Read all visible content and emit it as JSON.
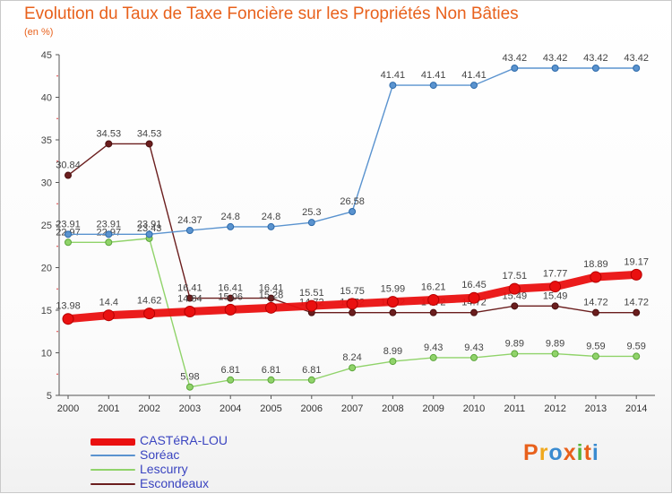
{
  "chart_data": {
    "type": "line",
    "title": "Evolution du Taux de Taxe Foncière sur les Propriétés Non Bâties",
    "subtitle": "(en %)",
    "x": [
      "2000",
      "2001",
      "2002",
      "2003",
      "2004",
      "2005",
      "2006",
      "2007",
      "2008",
      "2009",
      "2010",
      "2011",
      "2012",
      "2013",
      "2014"
    ],
    "ylim": [
      5,
      45
    ],
    "yticks": [
      5,
      10,
      15,
      20,
      25,
      30,
      35,
      40,
      45
    ],
    "grid": false,
    "legend_position": "bottom-left",
    "series": [
      {
        "name": "Escondeaux",
        "color": "#6b1e1e",
        "values": [
          30.84,
          34.53,
          34.53,
          16.41,
          16.41,
          16.41,
          14.72,
          14.72,
          14.72,
          14.72,
          14.72,
          15.49,
          15.49,
          14.72,
          14.72
        ],
        "labels": [
          "30.84",
          "34.53",
          "34.53",
          "16.41",
          "16.41",
          "16.41",
          "14.72",
          "14.72",
          "14.72",
          "14.72",
          "14.72",
          "15.49",
          "15.49",
          "14.72",
          "14.72"
        ]
      },
      {
        "name": "Lescurry",
        "color": "#90d36a",
        "values": [
          22.97,
          22.97,
          23.43,
          5.98,
          6.81,
          6.81,
          6.81,
          8.24,
          8.99,
          9.43,
          9.43,
          9.89,
          9.89,
          9.59,
          9.59
        ],
        "labels": [
          "22.97",
          "22.97",
          "23.43",
          "5.98",
          "6.81",
          "6.81",
          "6.81",
          "8.24",
          "8.99",
          "9.43",
          "9.43",
          "9.89",
          "9.89",
          "9.59",
          "9.59"
        ]
      },
      {
        "name": "Soréac",
        "color": "#5a93cf",
        "values": [
          23.91,
          23.91,
          23.91,
          24.37,
          24.8,
          24.8,
          25.3,
          26.58,
          41.41,
          41.41,
          41.41,
          43.42,
          43.42,
          43.42,
          43.42
        ],
        "labels": [
          "23.91",
          "23.91",
          "23.91",
          "24.37",
          "24.8",
          "24.8",
          "25.3",
          "26.58",
          "41.41",
          "41.41",
          "41.41",
          "43.42",
          "43.42",
          "43.42",
          "43.42"
        ]
      },
      {
        "name": "CASTéRA-LOU",
        "color": "#ea1010",
        "values": [
          13.98,
          14.4,
          14.62,
          14.84,
          15.06,
          15.28,
          15.51,
          15.75,
          15.99,
          16.21,
          16.45,
          17.51,
          17.77,
          18.89,
          19.17
        ],
        "labels": [
          "13.98",
          "14.4",
          "14.62",
          "14.84",
          "15.06",
          "15.28",
          "15.51",
          "15.75",
          "15.99",
          "16.21",
          "16.45",
          "17.51",
          "17.77",
          "18.89",
          "19.17"
        ]
      }
    ]
  },
  "legend": [
    {
      "label": "CASTéRA-LOU",
      "color": "#ea1010"
    },
    {
      "label": "Soréac",
      "color": "#5a93cf"
    },
    {
      "label": "Lescurry",
      "color": "#90d36a"
    },
    {
      "label": "Escondeaux",
      "color": "#6b1e1e"
    }
  ],
  "logo": {
    "text": "Proxiti",
    "colors": [
      "#e8611c",
      "#f0a81c",
      "#3a8bd0",
      "#e8611c",
      "#58b43a",
      "#e8611c",
      "#3a8bd0"
    ]
  }
}
